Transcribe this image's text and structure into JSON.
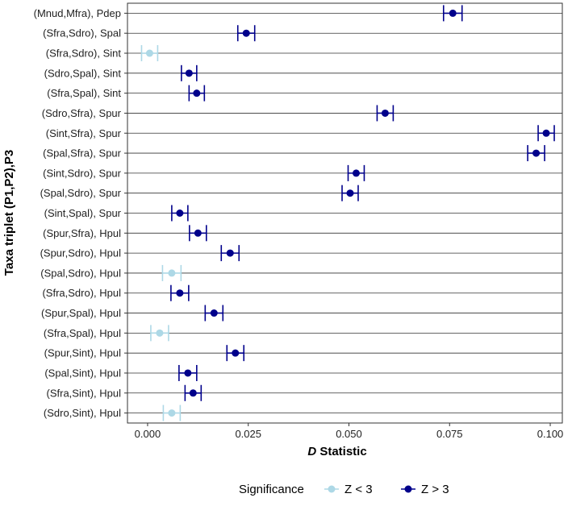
{
  "chart_data": {
    "type": "scatter",
    "subtype": "dot-plot-with-error-bars",
    "ylabel": "Taxa triplet (P1,P2),P3",
    "xlabel_italic": "D",
    "xlabel_rest": " Statistic",
    "xlim": [
      -0.005,
      0.103
    ],
    "xticks": [
      0.0,
      0.025,
      0.05,
      0.075,
      0.1
    ],
    "xtick_labels": [
      "0.000",
      "0.025",
      "0.050",
      "0.075",
      "0.100"
    ],
    "grid": "horizontal",
    "legend": {
      "title": "Significance",
      "placement": "bottom",
      "entries": [
        {
          "label": "Z < 3",
          "color": "#add8e6"
        },
        {
          "label": "Z > 3",
          "color": "#00008b"
        }
      ]
    },
    "rows": [
      {
        "label": "(Mnud,Mfra), Pdep",
        "d": 0.0758,
        "err": 0.0023,
        "sig": "Z > 3"
      },
      {
        "label": "(Sfra,Sdro), Spal",
        "d": 0.0245,
        "err": 0.0021,
        "sig": "Z > 3"
      },
      {
        "label": "(Sfra,Sdro), Sint",
        "d": 0.0005,
        "err": 0.002,
        "sig": "Z < 3"
      },
      {
        "label": "(Sdro,Spal), Sint",
        "d": 0.0103,
        "err": 0.0019,
        "sig": "Z > 3"
      },
      {
        "label": "(Sfra,Spal), Sint",
        "d": 0.0122,
        "err": 0.0019,
        "sig": "Z > 3"
      },
      {
        "label": "(Sdro,Sfra), Spur",
        "d": 0.059,
        "err": 0.002,
        "sig": "Z > 3"
      },
      {
        "label": "(Sint,Sfra), Spur",
        "d": 0.099,
        "err": 0.002,
        "sig": "Z > 3"
      },
      {
        "label": "(Spal,Sfra), Spur",
        "d": 0.0965,
        "err": 0.0021,
        "sig": "Z > 3"
      },
      {
        "label": "(Sint,Sdro), Spur",
        "d": 0.0518,
        "err": 0.002,
        "sig": "Z > 3"
      },
      {
        "label": "(Spal,Sdro), Spur",
        "d": 0.0503,
        "err": 0.002,
        "sig": "Z > 3"
      },
      {
        "label": "(Sint,Spal), Spur",
        "d": 0.008,
        "err": 0.002,
        "sig": "Z > 3"
      },
      {
        "label": "(Spur,Sfra), Hpul",
        "d": 0.0125,
        "err": 0.0021,
        "sig": "Z > 3"
      },
      {
        "label": "(Spur,Sdro), Hpul",
        "d": 0.0205,
        "err": 0.0022,
        "sig": "Z > 3"
      },
      {
        "label": "(Spal,Sdro), Hpul",
        "d": 0.006,
        "err": 0.0023,
        "sig": "Z < 3"
      },
      {
        "label": "(Sfra,Sdro), Hpul",
        "d": 0.008,
        "err": 0.0022,
        "sig": "Z > 3"
      },
      {
        "label": "(Spur,Spal), Hpul",
        "d": 0.0165,
        "err": 0.0022,
        "sig": "Z > 3"
      },
      {
        "label": "(Sfra,Spal), Hpul",
        "d": 0.003,
        "err": 0.0022,
        "sig": "Z < 3"
      },
      {
        "label": "(Spur,Sint), Hpul",
        "d": 0.0218,
        "err": 0.0021,
        "sig": "Z > 3"
      },
      {
        "label": "(Spal,Sint), Hpul",
        "d": 0.01,
        "err": 0.0022,
        "sig": "Z > 3"
      },
      {
        "label": "(Sfra,Sint), Hpul",
        "d": 0.0113,
        "err": 0.002,
        "sig": "Z > 3"
      },
      {
        "label": "(Sdro,Sint), Hpul",
        "d": 0.006,
        "err": 0.0021,
        "sig": "Z < 3"
      }
    ]
  }
}
